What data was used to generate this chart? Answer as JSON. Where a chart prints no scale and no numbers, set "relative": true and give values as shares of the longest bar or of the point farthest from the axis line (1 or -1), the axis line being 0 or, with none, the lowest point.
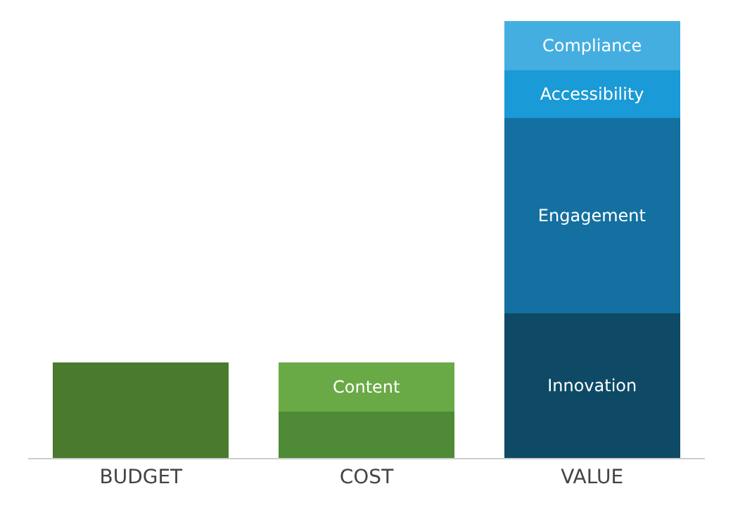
{
  "chart_data": {
    "type": "bar",
    "stacked": true,
    "relative": true,
    "legend": false,
    "categories": [
      "BUDGET",
      "COST",
      "VALUE"
    ],
    "series": [
      {
        "color": "#4a7a2e",
        "values": [
          0.219,
          null,
          null
        ]
      },
      {
        "color": "#4f8a36",
        "values": [
          null,
          0.106,
          null
        ]
      },
      {
        "name": "Content",
        "color": "#6aaa46",
        "values": [
          null,
          0.113,
          null
        ]
      },
      {
        "name": "Innovation",
        "color": "#0e4a66",
        "values": [
          null,
          null,
          0.331
        ]
      },
      {
        "name": "Engagement",
        "color": "#1470a0",
        "values": [
          null,
          null,
          0.447
        ]
      },
      {
        "name": "Accessibility",
        "color": "#1a9ad6",
        "values": [
          null,
          null,
          0.109
        ]
      },
      {
        "name": "Compliance",
        "color": "#45aee0",
        "values": [
          null,
          null,
          0.113
        ]
      }
    ]
  }
}
